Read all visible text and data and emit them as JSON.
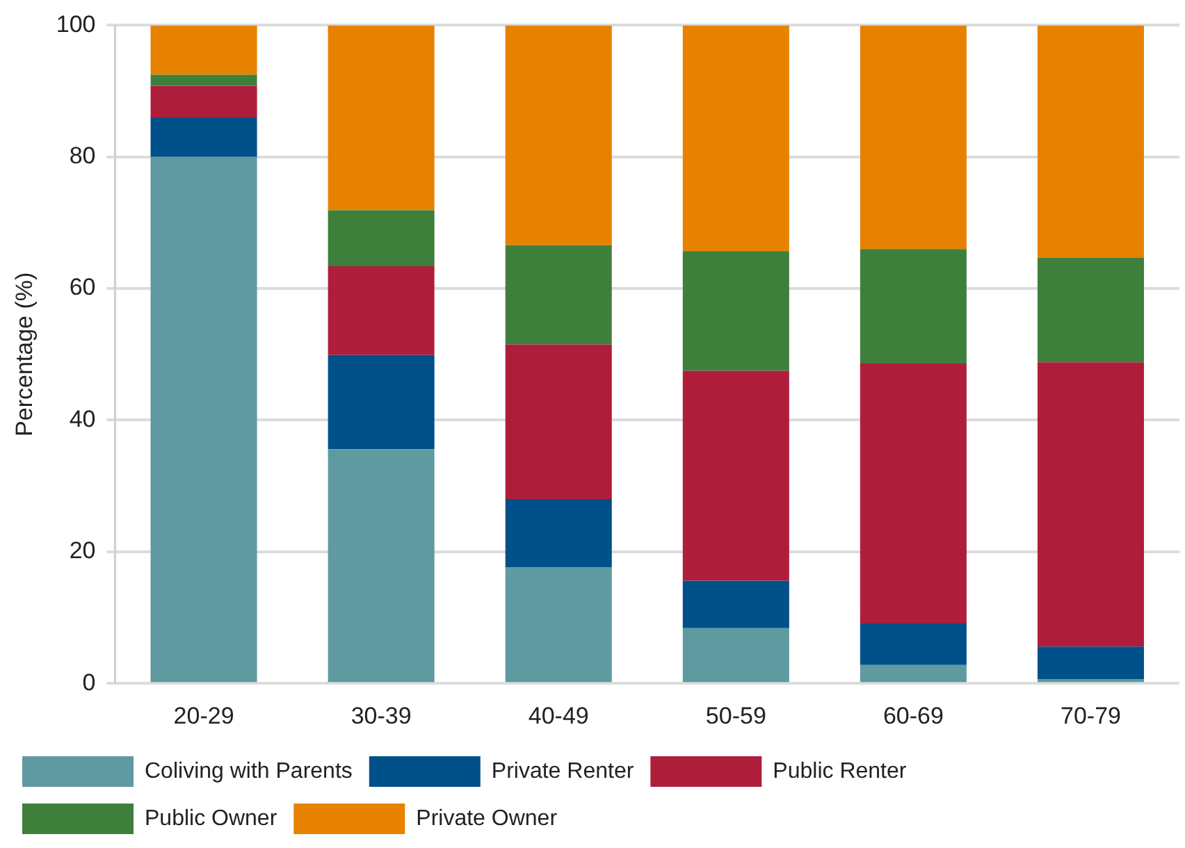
{
  "chart_data": {
    "type": "bar",
    "stacked": true,
    "ylabel": "Percentage (%)",
    "categories": [
      "20-29",
      "30-39",
      "40-49",
      "50-59",
      "60-69",
      "70-79"
    ],
    "series": [
      {
        "name": "Coliving with Parents",
        "color": "#5e9aa0",
        "values": [
          80,
          35.6,
          17.6,
          8.4,
          2.8,
          0.6
        ]
      },
      {
        "name": "Private Renter",
        "color": "#00508a",
        "values": [
          6,
          14.3,
          10.4,
          7.2,
          6.3,
          5
        ]
      },
      {
        "name": "Public Renter",
        "color": "#ae1e3a",
        "values": [
          4.8,
          13.5,
          23.5,
          31.9,
          39.5,
          43.2
        ]
      },
      {
        "name": "Public Owner",
        "color": "#3e7f3c",
        "values": [
          1.7,
          8.5,
          15.1,
          18.2,
          17.4,
          15.9
        ]
      },
      {
        "name": "Private Owner",
        "color": "#e68200",
        "values": [
          7.5,
          28.1,
          33.4,
          34.3,
          34,
          35.3
        ]
      }
    ],
    "ylim": [
      0,
      100
    ],
    "yticks": [
      0,
      20,
      40,
      60,
      80,
      100
    ],
    "grid": "y",
    "legend": "bottom"
  }
}
